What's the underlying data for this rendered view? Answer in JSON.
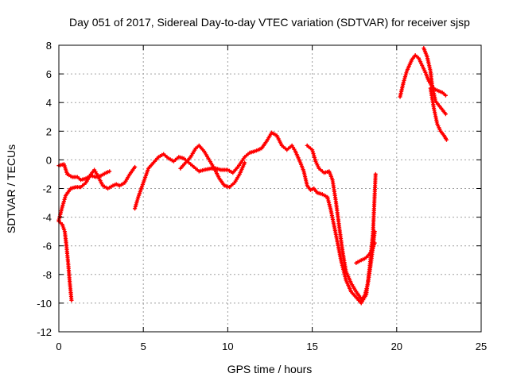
{
  "chart_data": {
    "type": "scatter",
    "title": "Day 051 of 2017, Sidereal Day-to-day VTEC variation (SDTVAR) for receiver sjsp",
    "xlabel": "GPS time / hours",
    "ylabel": "SDTVAR / TECUs",
    "xlim": [
      0,
      25
    ],
    "ylim": [
      -12,
      8
    ],
    "xticks": [
      0,
      5,
      10,
      15,
      20,
      25
    ],
    "yticks": [
      -12,
      -10,
      -8,
      -6,
      -4,
      -2,
      0,
      2,
      4,
      6,
      8
    ],
    "grid": true,
    "marker": "plus",
    "color": "#ff0000",
    "series": [
      {
        "segments": [
          [
            [
              0.0,
              -0.4
            ],
            [
              0.3,
              -0.3
            ],
            [
              0.5,
              -1.0
            ],
            [
              0.8,
              -1.2
            ],
            [
              1.1,
              -1.2
            ],
            [
              1.3,
              -1.4
            ],
            [
              1.6,
              -1.3
            ],
            [
              1.9,
              -1.1
            ],
            [
              2.2,
              -1.2
            ],
            [
              2.5,
              -1.1
            ],
            [
              2.8,
              -0.9
            ],
            [
              3.0,
              -0.8
            ]
          ],
          [
            [
              0.0,
              -4.2
            ],
            [
              0.2,
              -3.3
            ],
            [
              0.4,
              -2.5
            ],
            [
              0.7,
              -2.0
            ],
            [
              1.0,
              -1.9
            ],
            [
              1.3,
              -1.9
            ],
            [
              1.6,
              -1.6
            ],
            [
              1.9,
              -1.0
            ],
            [
              2.1,
              -0.7
            ],
            [
              2.3,
              -1.1
            ],
            [
              2.6,
              -1.8
            ],
            [
              2.9,
              -2.0
            ],
            [
              3.2,
              -1.8
            ],
            [
              3.4,
              -1.7
            ],
            [
              3.6,
              -1.8
            ],
            [
              3.9,
              -1.6
            ],
            [
              4.2,
              -1.0
            ],
            [
              4.5,
              -0.5
            ]
          ],
          [
            [
              0.0,
              -4.3
            ],
            [
              0.2,
              -4.5
            ],
            [
              0.35,
              -5.0
            ],
            [
              0.45,
              -6.0
            ],
            [
              0.55,
              -7.2
            ],
            [
              0.65,
              -8.6
            ],
            [
              0.75,
              -9.8
            ]
          ],
          [
            [
              4.5,
              -3.4
            ],
            [
              4.7,
              -2.6
            ],
            [
              5.0,
              -1.6
            ],
            [
              5.3,
              -0.6
            ],
            [
              5.6,
              -0.2
            ],
            [
              5.9,
              0.2
            ],
            [
              6.2,
              0.4
            ],
            [
              6.5,
              0.1
            ],
            [
              6.8,
              -0.1
            ],
            [
              7.1,
              0.2
            ],
            [
              7.4,
              0.1
            ],
            [
              7.7,
              -0.2
            ],
            [
              8.0,
              -0.5
            ],
            [
              8.3,
              -0.8
            ],
            [
              8.6,
              -0.7
            ],
            [
              9.0,
              -0.6
            ],
            [
              9.3,
              -0.6
            ],
            [
              9.6,
              -0.7
            ],
            [
              10.0,
              -0.7
            ],
            [
              10.3,
              -0.9
            ],
            [
              10.6,
              -0.5
            ],
            [
              11.0,
              0.2
            ],
            [
              11.3,
              0.5
            ],
            [
              11.6,
              0.6
            ],
            [
              12.0,
              0.8
            ],
            [
              12.3,
              1.3
            ],
            [
              12.6,
              1.9
            ],
            [
              12.9,
              1.7
            ],
            [
              13.2,
              1.0
            ],
            [
              13.5,
              0.7
            ],
            [
              13.8,
              1.0
            ],
            [
              14.0,
              0.6
            ],
            [
              14.3,
              -0.2
            ],
            [
              14.5,
              -0.8
            ],
            [
              14.7,
              -1.8
            ],
            [
              14.9,
              -2.1
            ],
            [
              15.1,
              -2.0
            ],
            [
              15.3,
              -2.3
            ],
            [
              15.6,
              -2.4
            ],
            [
              15.9,
              -2.6
            ],
            [
              16.1,
              -3.5
            ],
            [
              16.4,
              -5.2
            ],
            [
              16.7,
              -7.0
            ],
            [
              17.0,
              -8.4
            ],
            [
              17.3,
              -9.2
            ],
            [
              17.6,
              -9.6
            ],
            [
              17.9,
              -10.0
            ],
            [
              18.2,
              -9.4
            ],
            [
              18.4,
              -7.5
            ],
            [
              18.6,
              -5.0
            ],
            [
              18.75,
              -1.0
            ]
          ],
          [
            [
              7.2,
              -0.6
            ],
            [
              7.5,
              -0.2
            ],
            [
              7.8,
              0.2
            ],
            [
              8.1,
              0.8
            ],
            [
              8.3,
              1.0
            ],
            [
              8.6,
              0.6
            ],
            [
              8.9,
              0.0
            ],
            [
              9.2,
              -0.6
            ],
            [
              9.5,
              -1.3
            ],
            [
              9.8,
              -1.8
            ],
            [
              10.1,
              -1.9
            ],
            [
              10.4,
              -1.6
            ],
            [
              10.7,
              -1.0
            ],
            [
              11.0,
              -0.2
            ]
          ],
          [
            [
              14.7,
              1.0
            ],
            [
              15.0,
              0.7
            ],
            [
              15.2,
              -0.1
            ],
            [
              15.4,
              -0.6
            ],
            [
              15.7,
              -0.9
            ],
            [
              16.0,
              -0.8
            ],
            [
              16.2,
              -1.4
            ],
            [
              16.4,
              -2.9
            ],
            [
              16.6,
              -4.7
            ],
            [
              16.8,
              -6.4
            ],
            [
              17.0,
              -7.8
            ],
            [
              17.3,
              -8.6
            ],
            [
              17.6,
              -9.2
            ],
            [
              17.9,
              -9.7
            ],
            [
              18.1,
              -9.5
            ],
            [
              18.3,
              -8.6
            ],
            [
              18.5,
              -7.0
            ],
            [
              18.7,
              -5.0
            ]
          ],
          [
            [
              17.6,
              -7.2
            ],
            [
              17.9,
              -7.0
            ],
            [
              18.1,
              -6.9
            ],
            [
              18.3,
              -6.7
            ],
            [
              18.5,
              -6.4
            ],
            [
              18.7,
              -5.8
            ]
          ],
          [
            [
              20.2,
              4.4
            ],
            [
              20.4,
              5.4
            ],
            [
              20.6,
              6.2
            ],
            [
              20.9,
              7.0
            ],
            [
              21.1,
              7.3
            ],
            [
              21.3,
              7.1
            ],
            [
              21.5,
              6.6
            ],
            [
              21.7,
              6.1
            ],
            [
              21.9,
              5.5
            ],
            [
              22.1,
              5.1
            ],
            [
              22.3,
              4.9
            ],
            [
              22.5,
              4.8
            ],
            [
              22.7,
              4.7
            ],
            [
              22.9,
              4.5
            ]
          ],
          [
            [
              21.6,
              7.8
            ],
            [
              21.8,
              7.2
            ],
            [
              22.0,
              6.2
            ],
            [
              22.1,
              5.2
            ],
            [
              22.3,
              4.1
            ],
            [
              22.5,
              3.8
            ],
            [
              22.7,
              3.5
            ],
            [
              22.9,
              3.2
            ]
          ],
          [
            [
              22.0,
              5.0
            ],
            [
              22.2,
              3.6
            ],
            [
              22.4,
              2.5
            ],
            [
              22.6,
              2.0
            ],
            [
              22.8,
              1.7
            ],
            [
              22.95,
              1.4
            ]
          ]
        ]
      }
    ]
  }
}
